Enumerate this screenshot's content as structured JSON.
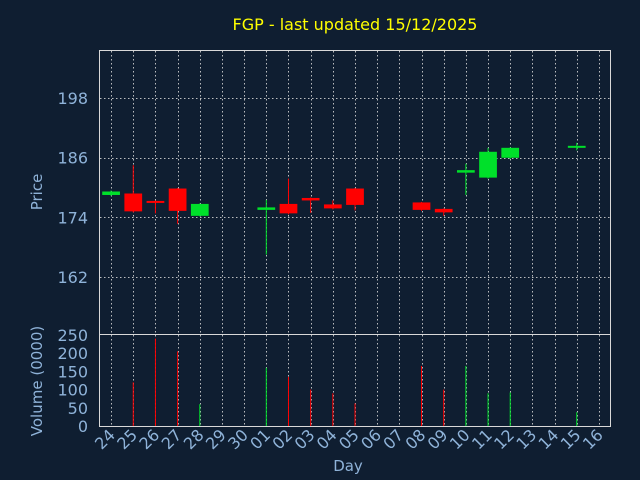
{
  "title": "FGP - last updated 15/12/2025",
  "colors": {
    "background": "#0f1e31",
    "title": "#ffff00",
    "text": "#8fb3d9",
    "up": "#00e02a",
    "down": "#ff0000",
    "grid": "#d9d9d9"
  },
  "chart_data": {
    "type": "candlestick",
    "title": "FGP - last updated 15/12/2025",
    "xlabel": "Day",
    "ylabel": "Price",
    "volume_label": "Volume (0000)",
    "x_ticks": [
      "24",
      "25",
      "26",
      "27",
      "28",
      "29",
      "30",
      "01",
      "02",
      "03",
      "04",
      "05",
      "06",
      "07",
      "08",
      "09",
      "10",
      "11",
      "12",
      "13",
      "14",
      "15",
      "16"
    ],
    "price_ticks": [
      162,
      174,
      186,
      198
    ],
    "price_range": [
      150.5,
      207.5
    ],
    "volume_ticks": [
      0,
      50,
      100,
      150,
      200,
      250
    ],
    "volume_range": [
      0,
      250
    ],
    "grid": true,
    "candles": [
      {
        "day": "24",
        "open": 178.5,
        "close": 179.2,
        "high": 179.4,
        "low": 178.3,
        "volume": 0
      },
      {
        "day": "25",
        "open": 178.8,
        "close": 175.2,
        "high": 184.5,
        "low": 175.0,
        "volume": 120
      },
      {
        "day": "26",
        "open": 177.3,
        "close": 176.9,
        "high": 177.4,
        "low": 174.8,
        "volume": 240
      },
      {
        "day": "27",
        "open": 179.8,
        "close": 175.3,
        "high": 179.9,
        "low": 172.7,
        "volume": 205
      },
      {
        "day": "28",
        "open": 174.3,
        "close": 176.7,
        "high": 176.8,
        "low": 174.2,
        "volume": 60
      },
      {
        "day": "01",
        "open": 175.5,
        "close": 176.0,
        "high": 177.5,
        "low": 166.5,
        "volume": 160
      },
      {
        "day": "02",
        "open": 176.7,
        "close": 174.8,
        "high": 181.8,
        "low": 174.6,
        "volume": 135
      },
      {
        "day": "03",
        "open": 177.9,
        "close": 177.4,
        "high": 178.0,
        "low": 174.9,
        "volume": 100
      },
      {
        "day": "04",
        "open": 176.6,
        "close": 175.8,
        "high": 177.4,
        "low": 175.6,
        "volume": 90
      },
      {
        "day": "05",
        "open": 179.8,
        "close": 176.5,
        "high": 179.9,
        "low": 175.4,
        "volume": 62
      },
      {
        "day": "08",
        "open": 177.0,
        "close": 175.5,
        "high": 177.1,
        "low": 175.3,
        "volume": 165
      },
      {
        "day": "09",
        "open": 175.7,
        "close": 175.0,
        "high": 175.8,
        "low": 174.3,
        "volume": 100
      },
      {
        "day": "10",
        "open": 183.0,
        "close": 183.5,
        "high": 184.8,
        "low": 178.5,
        "volume": 165
      },
      {
        "day": "11",
        "open": 182.0,
        "close": 187.2,
        "high": 188.0,
        "low": 181.8,
        "volume": 90
      },
      {
        "day": "12",
        "open": 186.0,
        "close": 188.0,
        "high": 188.1,
        "low": 185.8,
        "volume": 92
      },
      {
        "day": "15",
        "open": 188.0,
        "close": 188.4,
        "high": 189.0,
        "low": 187.5,
        "volume": 38
      }
    ]
  }
}
